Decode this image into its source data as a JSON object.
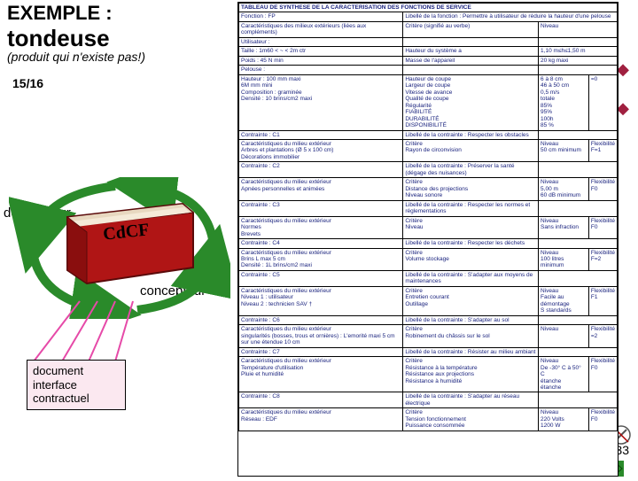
{
  "title": {
    "ex": "EXEMPLE :",
    "prod": "tondeuse"
  },
  "subtitle": "(produit qui n'existe pas!)",
  "pageIndicator": "15/16",
  "labels": {
    "demandeur": "demandeur",
    "concepteur": "concepteur"
  },
  "docBox": {
    "l1": "document",
    "l2": "interface",
    "l3": "contractuel"
  },
  "pageNum": "33",
  "bookLabel": "CdCF",
  "table": {
    "header": "TABLEAU DE SYNTHESE DE LA CARACTERISATION DES FONCTIONS DE SERVICE",
    "rows": [
      [
        "Fonction : FP",
        "Libellé de la fonction : Permettre à utilisateur de réduire la hauteur d'une pelouse"
      ],
      [
        "Caractéristiques des milieux extérieurs (liées aux compléments)",
        "Critère (signifié au verbe)",
        "Niveau"
      ],
      [
        "Utilisateur :",
        "",
        ""
      ],
      [
        "Taille : 1m60 < ~ < 2m ctr",
        "Hauteur du système a",
        "1,10 m≤h≤1,50 m"
      ],
      [
        "Poids : 45 N min",
        "Masse de l'appareil",
        "20 kg maxi"
      ],
      [
        "Pelouse :",
        "",
        ""
      ],
      [
        "Hauteur : 100 mm maxi — 6M mm mini — Composition : graminée — Densité : 10 brins/cm2 maxi",
        "Hauteur de coupe — Largeur de coupe — Vitesse de avance — Qualité de coupe — Régularité — FIABILITÉ — DURABILITÉ — DISPONIBILITÉ",
        "6 à 8 cm — 46 à 50 cm — 0,5 m/s — totale — 85% — 95% — 100h — 85 %",
        "=0"
      ],
      [
        "Contrainte : C1",
        "Libellé de la contrainte : Respecter les obstacles",
        ""
      ],
      [
        "Caractéristiques du milieu extérieur — Arbres et plantations (Ø 5 x 100 cm) — Décorations immobilier",
        "Critère — Rayon de circonvision",
        "Niveau — 50 cm minimum",
        "Flexibilité — F=1"
      ],
      [
        "Contrainte : C2",
        "Libellé de la contrainte : Préserver la santé (dégage des nuisances)",
        ""
      ],
      [
        "Caractéristiques du milieu extérieur — Apnées personnelles et animées",
        "Critère — Distance des projections — Niveau sonore",
        "Niveau — 5,00 m — 60 dB minimum",
        "Flexibilité — F0"
      ],
      [
        "Contrainte : C3",
        "Libellé de la contrainte : Respecter les normes et réglementations",
        ""
      ],
      [
        "Caractéristiques du milieu extérieur — Normes — Brevets",
        "Critère — Niveau",
        "Niveau — Sans infraction",
        "Flexibilité — F0"
      ],
      [
        "Contrainte : C4",
        "Libellé de la contrainte : Respecter les déchets",
        ""
      ],
      [
        "Caractéristiques du milieu extérieur — Brins L max 5 cm — Densité : 1L brins/cm2 maxi",
        "Critère — Volume stockage",
        "Niveau — 100 litres minimum",
        "Flexibilité — F=2"
      ],
      [
        "Contrainte : C5",
        "Libellé de la contrainte : S'adapter aux moyens de maintenances",
        ""
      ],
      [
        "Caractéristiques du milieu extérieur — Niveau 1 : utilisateur — Niveau 2 : technicien SAV †",
        "Critère — Entretien courant — Outillage",
        "Niveau — Facile au démontage — S standards",
        "Flexibilité — F1"
      ],
      [
        "Contrainte : C6",
        "Libellé de la contrainte : S'adapter au sol",
        ""
      ],
      [
        "Caractéristiques du milieu extérieur — singularités (bosses, trous et ornières) : L'emorité maxi 5 cm sur une étendue 10 cm",
        "Critère — Robinement du châssis sur le sol",
        "Niveau",
        "Flexibilité — =2"
      ],
      [
        "Contrainte : C7",
        "Libellé de la contrainte : Résister au milieu ambiant",
        ""
      ],
      [
        "Caractéristiques du milieu extérieur — Température d'utilisation — Pluie et humidité",
        "Critère — Résistance à la température — Résistance aux projections — Résistance à humidité",
        "Niveau — De -30° C à 50° C — étanche — étanche",
        "Flexibilité — F0"
      ],
      [
        "Contrainte : C8",
        "Libellé de la contrainte : S'adapter au réseau électrique",
        ""
      ],
      [
        "Caractéristiques du milieu extérieur — Réseau : EDF",
        "Critère — Tension fonctionnement — Puissance consommée",
        "Niveau — 220 Volts — 1200 W",
        "Flexibilité — F0"
      ]
    ]
  }
}
